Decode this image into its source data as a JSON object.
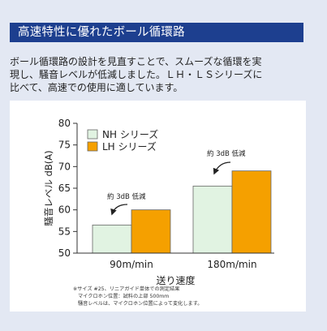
{
  "section_title": "高速特性に優れたボール循環路",
  "description": [
    "ボール循環路の設計を見直すことで、スムーズな循環を実",
    "現し、騒音レベルが低減しました。ＬＨ・ＬＳシリーズに",
    "比べて、高速での使用に適しています。"
  ],
  "colors": {
    "banner": "#1d3f8f",
    "nh_series": "#e1f3e2",
    "lh_series": "#f5a000",
    "page_bg": "#e3e8f3"
  },
  "chart_data": {
    "type": "bar",
    "categories": [
      "90m/min",
      "180m/min"
    ],
    "series": [
      {
        "name": "NH シリーズ",
        "values": [
          56.5,
          65.5
        ]
      },
      {
        "name": "LH シリーズ",
        "values": [
          60,
          69
        ]
      }
    ],
    "xlabel": "送り速度",
    "ylabel": "騒音レベル dB(A)",
    "ylim": [
      50,
      80
    ],
    "yticks": [
      50,
      55,
      60,
      65,
      70,
      75,
      80
    ],
    "grid": false,
    "legend": "top-left",
    "annotations": [
      "約 3dB 低減",
      "約 3dB 低減"
    ],
    "footnotes": [
      "※サイズ #25、リニアガイド単体での測定結果",
      "マイクロホン位置：試料の上部 500mm",
      "騒音レベルは、マイクロホン位置によって変化します。"
    ]
  }
}
